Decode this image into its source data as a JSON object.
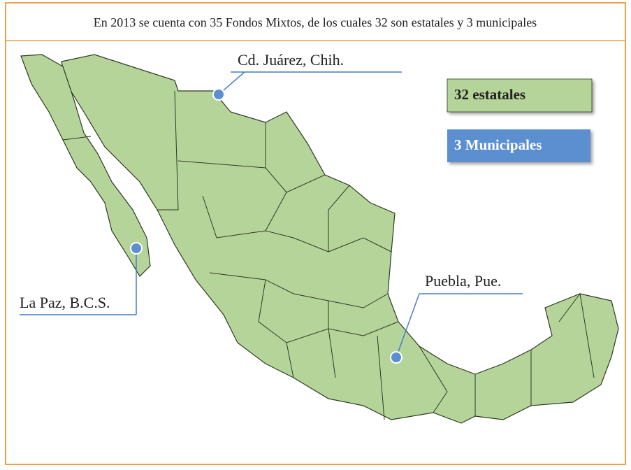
{
  "title": "En 2013 se cuenta con 35 Fondos Mixtos, de los cuales 32 son estatales y 3 municipales",
  "legend": [
    {
      "label": "32 estatales"
    },
    {
      "label": "3 Municipales"
    }
  ],
  "locations": [
    {
      "label": "Cd. Juárez, Chih."
    },
    {
      "label": "La Paz, B.C.S."
    },
    {
      "label": "Puebla, Pue."
    }
  ]
}
